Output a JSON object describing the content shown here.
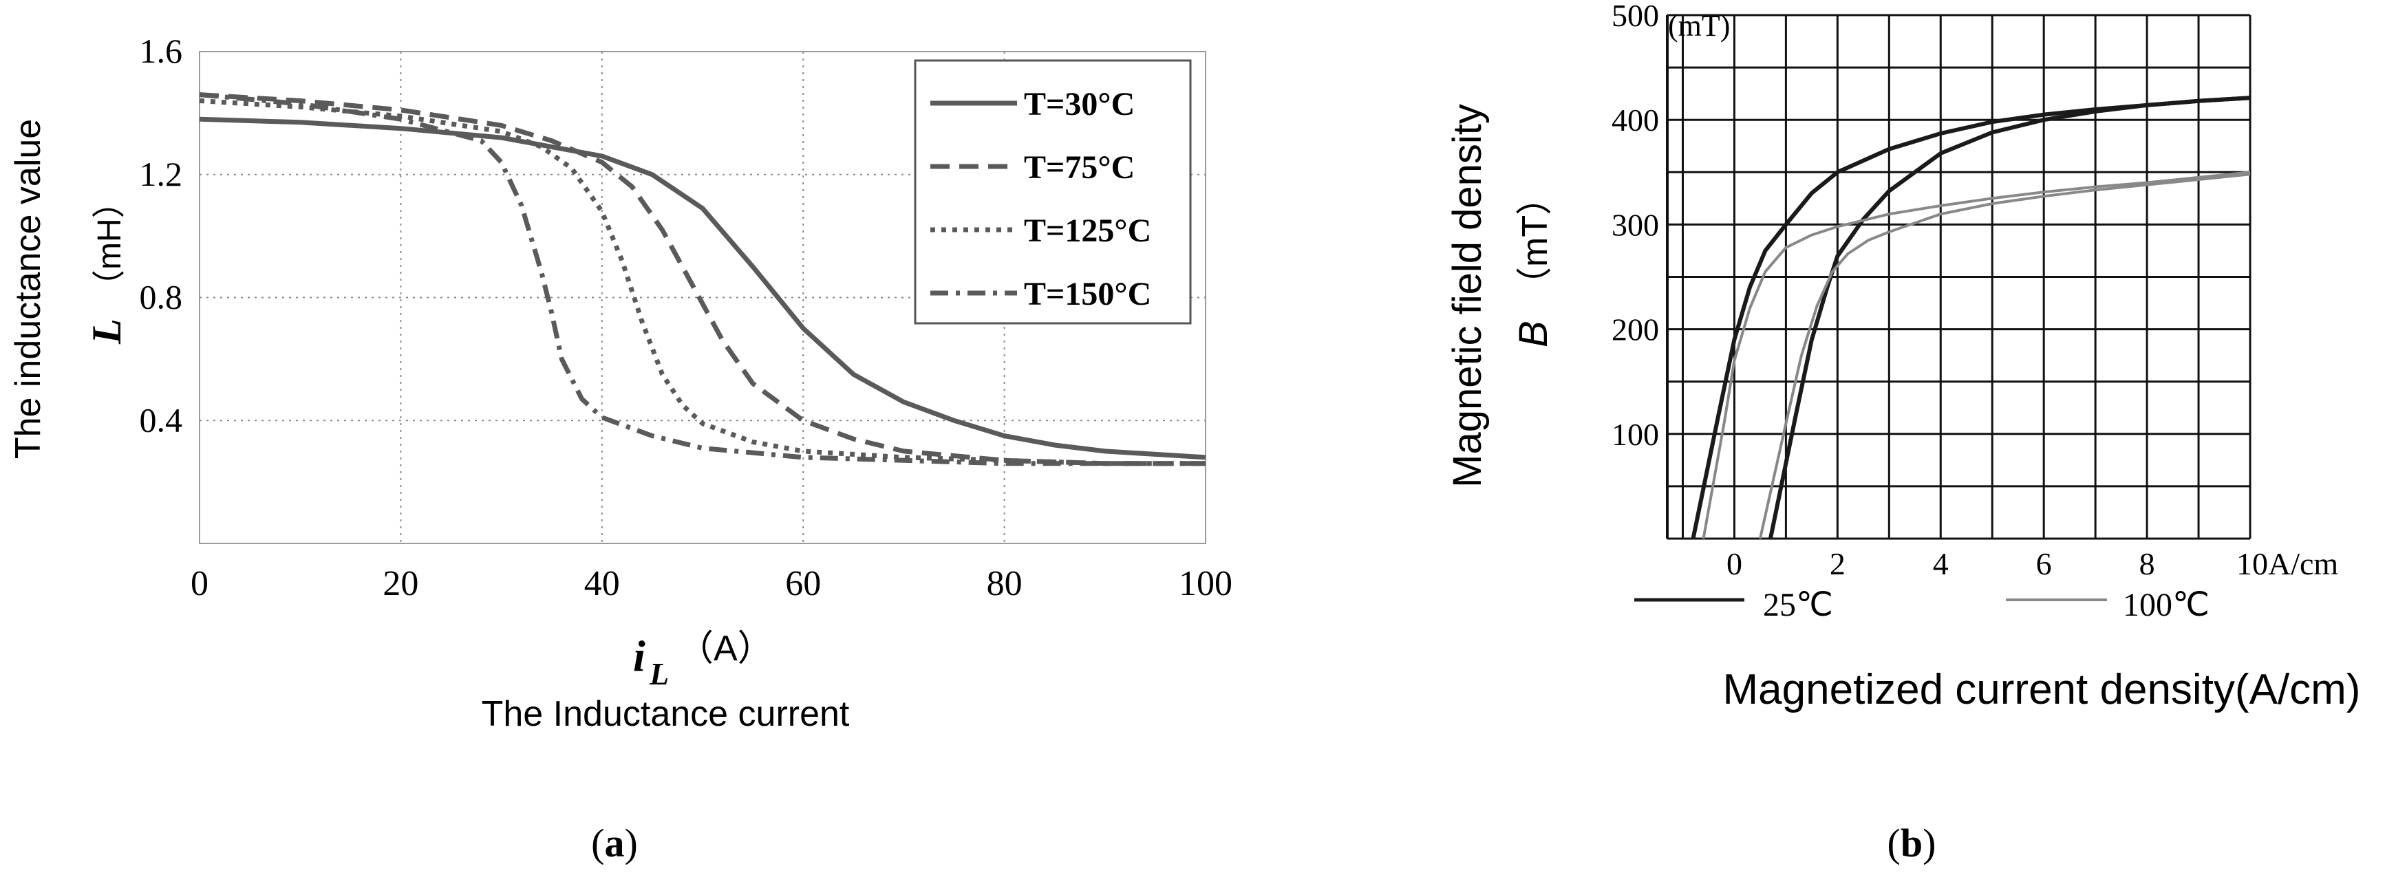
{
  "chart_data": [
    {
      "id": "a",
      "type": "line",
      "panel_label": "a",
      "xlabel_symbol": "i",
      "xlabel_sub": "L",
      "xlabel_unit": "（A）",
      "xlabel_desc": "The Inductance current",
      "ylabel_symbol": "L",
      "ylabel_unit": "（mH）",
      "ylabel_desc": "The inductance value",
      "xlim": [
        0,
        100
      ],
      "ylim": [
        0,
        1.6
      ],
      "xticks": [
        "0",
        "20",
        "40",
        "60",
        "80",
        "100"
      ],
      "yticks": [
        "0.4",
        "0.8",
        "1.2",
        "1.6"
      ],
      "grid": "dotted",
      "legend_position": "top-right",
      "series": [
        {
          "name": "T=30°C",
          "style": "solid",
          "color": "#5a5a5a",
          "x": [
            0,
            10,
            20,
            30,
            40,
            45,
            50,
            55,
            60,
            65,
            70,
            75,
            80,
            85,
            90,
            95,
            100
          ],
          "y": [
            1.38,
            1.37,
            1.35,
            1.32,
            1.26,
            1.2,
            1.09,
            0.9,
            0.7,
            0.55,
            0.46,
            0.4,
            0.35,
            0.32,
            0.3,
            0.29,
            0.28
          ]
        },
        {
          "name": "T=75°C",
          "style": "dashed",
          "color": "#5a5a5a",
          "x": [
            0,
            10,
            20,
            30,
            35,
            40,
            43,
            46,
            49,
            52,
            55,
            60,
            65,
            70,
            80,
            90,
            100
          ],
          "y": [
            1.46,
            1.44,
            1.41,
            1.36,
            1.31,
            1.24,
            1.16,
            1.02,
            0.84,
            0.66,
            0.52,
            0.4,
            0.34,
            0.3,
            0.27,
            0.26,
            0.26
          ]
        },
        {
          "name": "T=125°C",
          "style": "dotted",
          "color": "#5a5a5a",
          "x": [
            0,
            10,
            20,
            30,
            34,
            37,
            40,
            42,
            44,
            46,
            48,
            50,
            55,
            60,
            70,
            80,
            90,
            100
          ],
          "y": [
            1.44,
            1.42,
            1.39,
            1.34,
            1.29,
            1.22,
            1.08,
            0.92,
            0.72,
            0.55,
            0.45,
            0.39,
            0.33,
            0.3,
            0.28,
            0.27,
            0.26,
            0.26
          ]
        },
        {
          "name": "T=150°C",
          "style": "dashdot",
          "color": "#5a5a5a",
          "x": [
            0,
            10,
            20,
            28,
            30,
            32,
            34,
            35,
            36,
            38,
            40,
            45,
            50,
            60,
            70,
            80,
            90,
            100
          ],
          "y": [
            1.46,
            1.43,
            1.38,
            1.31,
            1.24,
            1.1,
            0.88,
            0.75,
            0.6,
            0.47,
            0.41,
            0.35,
            0.31,
            0.28,
            0.27,
            0.26,
            0.26,
            0.26
          ]
        }
      ]
    },
    {
      "id": "b",
      "type": "line",
      "panel_label": "b",
      "unit_label": "(mT)",
      "ylabel_desc": "Magnetic field density",
      "ylabel_symbol": "B",
      "ylabel_unit": "（mT）",
      "xlabel_desc": "Magnetized current density(A/cm)",
      "xlim": [
        -1.3,
        10
      ],
      "ylim": [
        0,
        500
      ],
      "xticks": [
        "0",
        "2",
        "4",
        "6",
        "8",
        "10A/cm"
      ],
      "yticks": [
        "100",
        "200",
        "300",
        "400",
        "500"
      ],
      "grid": "solid",
      "legend_position": "bottom",
      "legend": [
        {
          "name": "25℃",
          "color": "#1a1a1a"
        },
        {
          "name": "100℃",
          "color": "#888888"
        }
      ],
      "series": [
        {
          "name": "25℃",
          "color": "#1a1a1a",
          "x": [
            -0.8,
            -0.3,
            0,
            0.3,
            0.6,
            1,
            1.5,
            2,
            3,
            4,
            5,
            6,
            7,
            8,
            9,
            10
          ],
          "y": [
            0,
            120,
            190,
            240,
            275,
            300,
            330,
            350,
            372,
            387,
            398,
            405,
            410,
            414,
            418,
            421
          ]
        },
        {
          "name": "25℃",
          "color": "#1a1a1a",
          "x": [
            0.7,
            1.2,
            1.5,
            1.8,
            2,
            2.5,
            3,
            4,
            5,
            6,
            7,
            8,
            9,
            10
          ],
          "y": [
            0,
            120,
            190,
            240,
            270,
            305,
            332,
            368,
            388,
            400,
            408,
            414,
            418,
            421
          ]
        },
        {
          "name": "100℃",
          "color": "#888888",
          "x": [
            -0.6,
            -0.2,
            0,
            0.3,
            0.6,
            1,
            1.5,
            2,
            3,
            4,
            5,
            6,
            7,
            8,
            9,
            10
          ],
          "y": [
            0,
            110,
            170,
            220,
            255,
            278,
            290,
            298,
            310,
            318,
            325,
            331,
            336,
            340,
            345,
            350
          ]
        },
        {
          "name": "100℃",
          "color": "#888888",
          "x": [
            0.5,
            1,
            1.3,
            1.6,
            1.9,
            2.2,
            2.6,
            3,
            4,
            5,
            6,
            7,
            8,
            9,
            10
          ],
          "y": [
            0,
            110,
            175,
            222,
            255,
            272,
            285,
            293,
            310,
            320,
            327,
            333,
            338,
            343,
            348
          ]
        }
      ]
    }
  ]
}
